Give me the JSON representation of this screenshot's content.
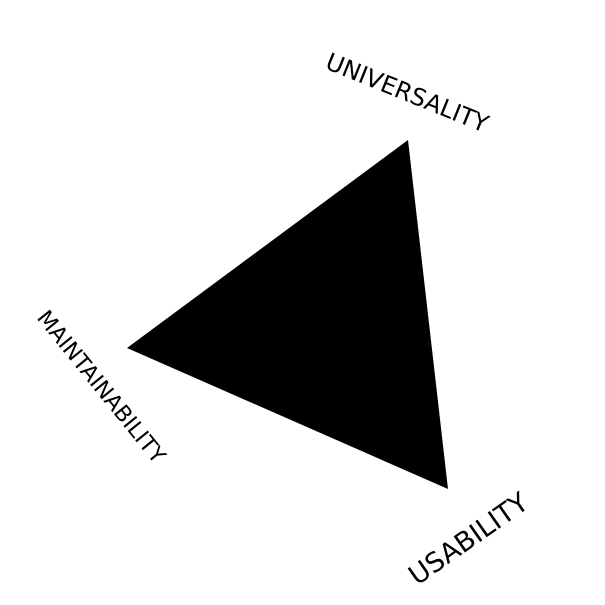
{
  "diagram": {
    "fill_color": "#000000",
    "background_color": "#ffffff",
    "labels": {
      "top": "UNIVERSALITY",
      "left": "MAINTAINABILITY",
      "bottom": "USABILITY"
    }
  }
}
